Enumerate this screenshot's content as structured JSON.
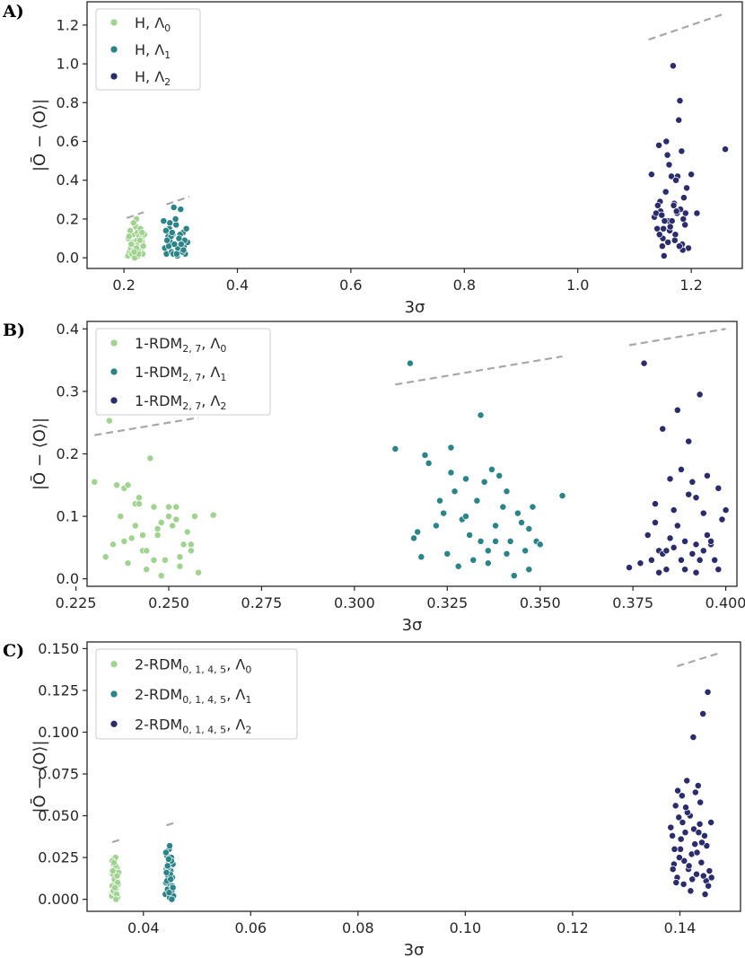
{
  "colors": {
    "lambda0": "#a0d38f",
    "lambda1": "#2a8488",
    "lambda2": "#2b2c6b",
    "bound": "#a8a8a8",
    "frame": "#262626"
  },
  "chart_data": [
    {
      "panel": "A)",
      "type": "scatter",
      "xlabel": "3σ",
      "ylabel": "|Ō − ⟨O⟩|",
      "xlim": [
        0.135,
        1.29
      ],
      "ylim": [
        -0.055,
        1.32
      ],
      "xticks": [
        0.2,
        0.4,
        0.6,
        0.8,
        1.0,
        1.2
      ],
      "xtick_labels": [
        "0.2",
        "0.4",
        "0.6",
        "0.8",
        "1.0",
        "1.2"
      ],
      "yticks": [
        0.0,
        0.2,
        0.4,
        0.6,
        0.8,
        1.0,
        1.2
      ],
      "ytick_labels": [
        "0.0",
        "0.2",
        "0.4",
        "0.6",
        "0.8",
        "1.0",
        "1.2"
      ],
      "legend_position": "top-left",
      "legend": [
        {
          "base": "H, Λ",
          "sub": "0",
          "tail": ""
        },
        {
          "base": "H, Λ",
          "sub": "1",
          "tail": ""
        },
        {
          "base": "H, Λ",
          "sub": "2",
          "tail": ""
        }
      ],
      "bounds": [
        {
          "x": [
            0.205,
            0.235
          ],
          "y": [
            0.205,
            0.235
          ]
        },
        {
          "x": [
            0.275,
            0.315
          ],
          "y": [
            0.275,
            0.315
          ]
        },
        {
          "x": [
            1.125,
            1.255
          ],
          "y": [
            1.125,
            1.255
          ]
        }
      ],
      "series": [
        {
          "name": "H, Λ0",
          "x": [
            0.207,
            0.21,
            0.212,
            0.214,
            0.215,
            0.216,
            0.218,
            0.22,
            0.221,
            0.222,
            0.223,
            0.224,
            0.225,
            0.226,
            0.227,
            0.228,
            0.229,
            0.23,
            0.231,
            0.232,
            0.233,
            0.234,
            0.236,
            0.208,
            0.211,
            0.217,
            0.219,
            0.225,
            0.228,
            0.232,
            0.213,
            0.226,
            0.222,
            0.209,
            0.218
          ],
          "y": [
            0.01,
            0.03,
            0.05,
            0.02,
            0.08,
            0.12,
            0.04,
            0.06,
            0.16,
            0.2,
            0.09,
            0.13,
            0.01,
            0.07,
            0.11,
            0.03,
            0.15,
            0.05,
            0.1,
            0.08,
            0.02,
            0.06,
            0.12,
            0.1,
            0.14,
            0.18,
            0.0,
            0.04,
            0.09,
            0.13,
            0.07,
            0.02,
            0.05,
            0.11,
            0.03
          ]
        },
        {
          "name": "H, Λ1",
          "x": [
            0.27,
            0.272,
            0.275,
            0.278,
            0.28,
            0.282,
            0.284,
            0.286,
            0.288,
            0.29,
            0.292,
            0.294,
            0.296,
            0.298,
            0.3,
            0.302,
            0.304,
            0.306,
            0.308,
            0.31,
            0.312,
            0.274,
            0.279,
            0.283,
            0.287,
            0.291,
            0.295,
            0.299,
            0.303,
            0.307,
            0.281,
            0.289,
            0.297,
            0.305,
            0.285,
            0.293,
            0.301,
            0.276
          ],
          "y": [
            0.19,
            0.05,
            0.02,
            0.11,
            0.15,
            0.08,
            0.03,
            0.12,
            0.26,
            0.07,
            0.17,
            0.01,
            0.1,
            0.04,
            0.25,
            0.09,
            0.13,
            0.06,
            0.02,
            0.15,
            0.08,
            0.14,
            0.06,
            0.11,
            0.02,
            0.2,
            0.05,
            0.12,
            0.03,
            0.09,
            0.18,
            0.07,
            0.1,
            0.04,
            0.13,
            0.02,
            0.07,
            0.09
          ]
        },
        {
          "name": "H, Λ2",
          "x": [
            1.13,
            1.135,
            1.14,
            1.143,
            1.146,
            1.149,
            1.152,
            1.155,
            1.158,
            1.16,
            1.162,
            1.165,
            1.168,
            1.17,
            1.172,
            1.175,
            1.178,
            1.18,
            1.183,
            1.186,
            1.189,
            1.192,
            1.195,
            1.2,
            1.21,
            1.26,
            1.138,
            1.145,
            1.15,
            1.156,
            1.161,
            1.166,
            1.171,
            1.176,
            1.181,
            1.185,
            1.19,
            1.144,
            1.153,
            1.163,
            1.173,
            1.184,
            1.148,
            1.159,
            1.169,
            1.179,
            1.151,
            1.174,
            1.141,
            1.187
          ],
          "y": [
            0.43,
            0.21,
            0.15,
            0.58,
            0.24,
            0.06,
            0.01,
            0.34,
            0.53,
            0.19,
            0.14,
            0.42,
            0.99,
            0.28,
            0.12,
            0.23,
            0.71,
            0.81,
            0.55,
            0.2,
            0.17,
            0.36,
            0.05,
            0.43,
            0.23,
            0.56,
            0.23,
            0.29,
            0.1,
            0.6,
            0.48,
            0.19,
            0.09,
            0.42,
            0.25,
            0.04,
            0.23,
            0.12,
            0.19,
            0.16,
            0.4,
            0.07,
            0.22,
            0.08,
            0.27,
            0.06,
            0.15,
            0.24,
            0.27,
            0.31
          ]
        }
      ]
    },
    {
      "panel": "B)",
      "type": "scatter",
      "xlabel": "3σ",
      "ylabel": "|Ō − ⟨O⟩|",
      "xlim": [
        0.228,
        0.403
      ],
      "ylim": [
        -0.012,
        0.412
      ],
      "xticks": [
        0.225,
        0.25,
        0.275,
        0.3,
        0.325,
        0.35,
        0.375,
        0.4
      ],
      "xtick_labels": [
        "0.225",
        "0.250",
        "0.275",
        "0.300",
        "0.325",
        "0.350",
        "0.375",
        "0.400"
      ],
      "yticks": [
        0.0,
        0.1,
        0.2,
        0.3,
        0.4
      ],
      "ytick_labels": [
        "0.0",
        "0.1",
        "0.2",
        "0.3",
        "0.4"
      ],
      "legend_position": "top-left",
      "legend": [
        {
          "base": "1-RDM",
          "sub": "2, 7",
          "tail": ", Λ",
          "sub2": "0"
        },
        {
          "base": "1-RDM",
          "sub": "2, 7",
          "tail": ", Λ",
          "sub2": "1"
        },
        {
          "base": "1-RDM",
          "sub": "2, 7",
          "tail": ", Λ",
          "sub2": "2"
        }
      ],
      "bounds": [
        {
          "x": [
            0.23,
            0.258
          ],
          "y": [
            0.23,
            0.258
          ]
        },
        {
          "x": [
            0.311,
            0.356
          ],
          "y": [
            0.311,
            0.356
          ]
        },
        {
          "x": [
            0.374,
            0.4
          ],
          "y": [
            0.374,
            0.4
          ]
        }
      ],
      "series": [
        {
          "name": "1-RDM2,7, Λ0",
          "x": [
            0.23,
            0.233,
            0.234,
            0.235,
            0.236,
            0.237,
            0.238,
            0.239,
            0.24,
            0.241,
            0.242,
            0.243,
            0.244,
            0.245,
            0.246,
            0.247,
            0.248,
            0.249,
            0.25,
            0.251,
            0.252,
            0.253,
            0.254,
            0.255,
            0.256,
            0.257,
            0.258,
            0.262,
            0.238,
            0.241,
            0.244,
            0.247,
            0.25,
            0.253,
            0.256,
            0.239,
            0.243,
            0.248,
            0.252,
            0.242,
            0.246
          ],
          "y": [
            0.155,
            0.035,
            0.253,
            0.055,
            0.15,
            0.1,
            0.145,
            0.025,
            0.065,
            0.12,
            0.13,
            0.045,
            0.015,
            0.193,
            0.115,
            0.07,
            0.09,
            0.03,
            0.115,
            0.085,
            0.115,
            0.02,
            0.055,
            0.075,
            0.045,
            0.1,
            0.01,
            0.102,
            0.06,
            0.085,
            0.045,
            0.08,
            0.1,
            0.035,
            0.055,
            0.15,
            0.07,
            0.005,
            0.095,
            0.12,
            0.03
          ]
        },
        {
          "name": "1-RDM2,7, Λ1",
          "x": [
            0.311,
            0.315,
            0.316,
            0.317,
            0.318,
            0.319,
            0.32,
            0.322,
            0.323,
            0.324,
            0.325,
            0.326,
            0.327,
            0.328,
            0.329,
            0.33,
            0.331,
            0.332,
            0.333,
            0.334,
            0.335,
            0.336,
            0.337,
            0.338,
            0.339,
            0.34,
            0.341,
            0.342,
            0.343,
            0.344,
            0.345,
            0.346,
            0.347,
            0.348,
            0.349,
            0.35,
            0.356,
            0.334,
            0.336,
            0.338,
            0.326,
            0.33,
            0.341,
            0.347
          ],
          "y": [
            0.208,
            0.345,
            0.065,
            0.075,
            0.035,
            0.198,
            0.185,
            0.085,
            0.125,
            0.105,
            0.04,
            0.21,
            0.14,
            0.02,
            0.095,
            0.16,
            0.07,
            0.03,
            0.125,
            0.06,
            0.155,
            0.045,
            0.175,
            0.085,
            0.165,
            0.115,
            0.04,
            0.06,
            0.005,
            0.105,
            0.09,
            0.045,
            0.08,
            0.115,
            0.06,
            0.055,
            0.133,
            0.262,
            0.025,
            0.06,
            0.17,
            0.1,
            0.14,
            0.015
          ]
        },
        {
          "name": "1-RDM2,7, Λ2",
          "x": [
            0.374,
            0.377,
            0.378,
            0.379,
            0.38,
            0.381,
            0.382,
            0.383,
            0.384,
            0.385,
            0.386,
            0.387,
            0.388,
            0.389,
            0.39,
            0.391,
            0.392,
            0.393,
            0.394,
            0.395,
            0.396,
            0.397,
            0.398,
            0.399,
            0.4,
            0.383,
            0.385,
            0.387,
            0.389,
            0.391,
            0.393,
            0.395,
            0.381,
            0.384,
            0.386,
            0.388,
            0.39,
            0.392,
            0.394,
            0.396,
            0.398,
            0.382,
            0.388,
            0.392
          ],
          "y": [
            0.018,
            0.025,
            0.345,
            0.07,
            0.03,
            0.09,
            0.045,
            0.04,
            0.015,
            0.16,
            0.11,
            0.27,
            0.03,
            0.06,
            0.22,
            0.155,
            0.01,
            0.295,
            0.045,
            0.165,
            0.055,
            0.03,
            0.145,
            0.095,
            0.11,
            0.24,
            0.065,
            0.085,
            0.015,
            0.04,
            0.03,
            0.07,
            0.12,
            0.045,
            0.05,
            0.03,
            0.135,
            0.13,
            0.105,
            0.06,
            0.015,
            0.01,
            0.175,
            0.055
          ]
        }
      ]
    },
    {
      "panel": "C)",
      "type": "scatter",
      "xlabel": "3σ",
      "ylabel": "|Ō − ⟨O⟩|",
      "xlim": [
        0.0295,
        0.1513
      ],
      "ylim": [
        -0.0072,
        0.154
      ],
      "xticks": [
        0.04,
        0.06,
        0.08,
        0.1,
        0.12,
        0.14
      ],
      "xtick_labels": [
        "0.04",
        "0.06",
        "0.08",
        "0.10",
        "0.12",
        "0.14"
      ],
      "yticks": [
        0.0,
        0.025,
        0.05,
        0.075,
        0.1,
        0.125,
        0.15
      ],
      "ytick_labels": [
        "0.000",
        "0.025",
        "0.050",
        "0.075",
        "0.100",
        "0.125",
        "0.150"
      ],
      "legend_position": "top-left",
      "legend": [
        {
          "base": "2-RDM",
          "sub": "0, 1, 4, 5",
          "tail": ", Λ",
          "sub2": "0"
        },
        {
          "base": "2-RDM",
          "sub": "0, 1, 4, 5",
          "tail": ", Λ",
          "sub2": "1"
        },
        {
          "base": "2-RDM",
          "sub": "0, 1, 4, 5",
          "tail": ", Λ",
          "sub2": "2"
        }
      ],
      "bounds": [
        {
          "x": [
            0.0342,
            0.0357
          ],
          "y": [
            0.0342,
            0.0357
          ]
        },
        {
          "x": [
            0.0443,
            0.0458
          ],
          "y": [
            0.0443,
            0.0458
          ]
        },
        {
          "x": [
            0.1395,
            0.1475
          ],
          "y": [
            0.1395,
            0.1475
          ]
        }
      ],
      "series": [
        {
          "name": "2-RDM0,1,4,5, Λ0",
          "x": [
            0.0341,
            0.0342,
            0.0343,
            0.0344,
            0.0345,
            0.0346,
            0.0347,
            0.0348,
            0.0349,
            0.035,
            0.0351,
            0.0352,
            0.0353,
            0.0354,
            0.0342,
            0.0344,
            0.0346,
            0.0348,
            0.035,
            0.0352,
            0.0343,
            0.0347,
            0.0351,
            0.0345,
            0.0349
          ],
          "y": [
            0.002,
            0.008,
            0.015,
            0.021,
            0.004,
            0.011,
            0.018,
            0.025,
            0.006,
            0.013,
            0.019,
            0.001,
            0.009,
            0.016,
            0.023,
            0.005,
            0.012,
            0.02,
            0.003,
            0.01,
            0.017,
            0.007,
            0.014,
            0.022,
            0.0
          ]
        },
        {
          "name": "2-RDM0,1,4,5, Λ1",
          "x": [
            0.0441,
            0.0442,
            0.0443,
            0.0444,
            0.0445,
            0.0446,
            0.0447,
            0.0448,
            0.0449,
            0.045,
            0.0451,
            0.0452,
            0.0453,
            0.0454,
            0.0455,
            0.0456,
            0.0442,
            0.0444,
            0.0446,
            0.0448,
            0.045,
            0.0452,
            0.0454,
            0.0443,
            0.0447,
            0.0451,
            0.0455,
            0.0445,
            0.0449,
            0.0453
          ],
          "y": [
            0.003,
            0.01,
            0.018,
            0.026,
            0.006,
            0.014,
            0.022,
            0.03,
            0.001,
            0.009,
            0.017,
            0.025,
            0.005,
            0.013,
            0.021,
            0.002,
            0.028,
            0.011,
            0.019,
            0.004,
            0.015,
            0.023,
            0.008,
            0.016,
            0.024,
            0.012,
            0.007,
            0.02,
            0.032,
            0.0
          ]
        },
        {
          "name": "2-RDM0,1,4,5, Λ2",
          "x": [
            0.1383,
            0.1386,
            0.1389,
            0.1392,
            0.1395,
            0.1398,
            0.1401,
            0.1404,
            0.1407,
            0.141,
            0.1413,
            0.1416,
            0.1419,
            0.1422,
            0.1425,
            0.1428,
            0.1431,
            0.1434,
            0.1437,
            0.144,
            0.1443,
            0.1446,
            0.1449,
            0.1452,
            0.1455,
            0.1458,
            0.139,
            0.1396,
            0.1402,
            0.1408,
            0.1414,
            0.142,
            0.1426,
            0.1432,
            0.1438,
            0.1444,
            0.145,
            0.1393,
            0.1405,
            0.1417,
            0.1429,
            0.1441,
            0.1453,
            0.1399,
            0.1411,
            0.1423,
            0.1435,
            0.1447,
            0.1387,
            0.1459
          ],
          "y": [
            0.043,
            0.038,
            0.021,
            0.056,
            0.013,
            0.049,
            0.03,
            0.062,
            0.009,
            0.04,
            0.071,
            0.018,
            0.05,
            0.027,
            0.097,
            0.033,
            0.015,
            0.068,
            0.045,
            0.022,
            0.111,
            0.038,
            0.011,
            0.124,
            0.017,
            0.046,
            0.03,
            0.065,
            0.036,
            0.023,
            0.052,
            0.005,
            0.042,
            0.028,
            0.058,
            0.014,
            0.032,
            0.01,
            0.046,
            0.02,
            0.064,
            0.034,
            0.008,
            0.025,
            0.055,
            0.012,
            0.04,
            0.003,
            0.018,
            0.013
          ]
        }
      ]
    }
  ]
}
